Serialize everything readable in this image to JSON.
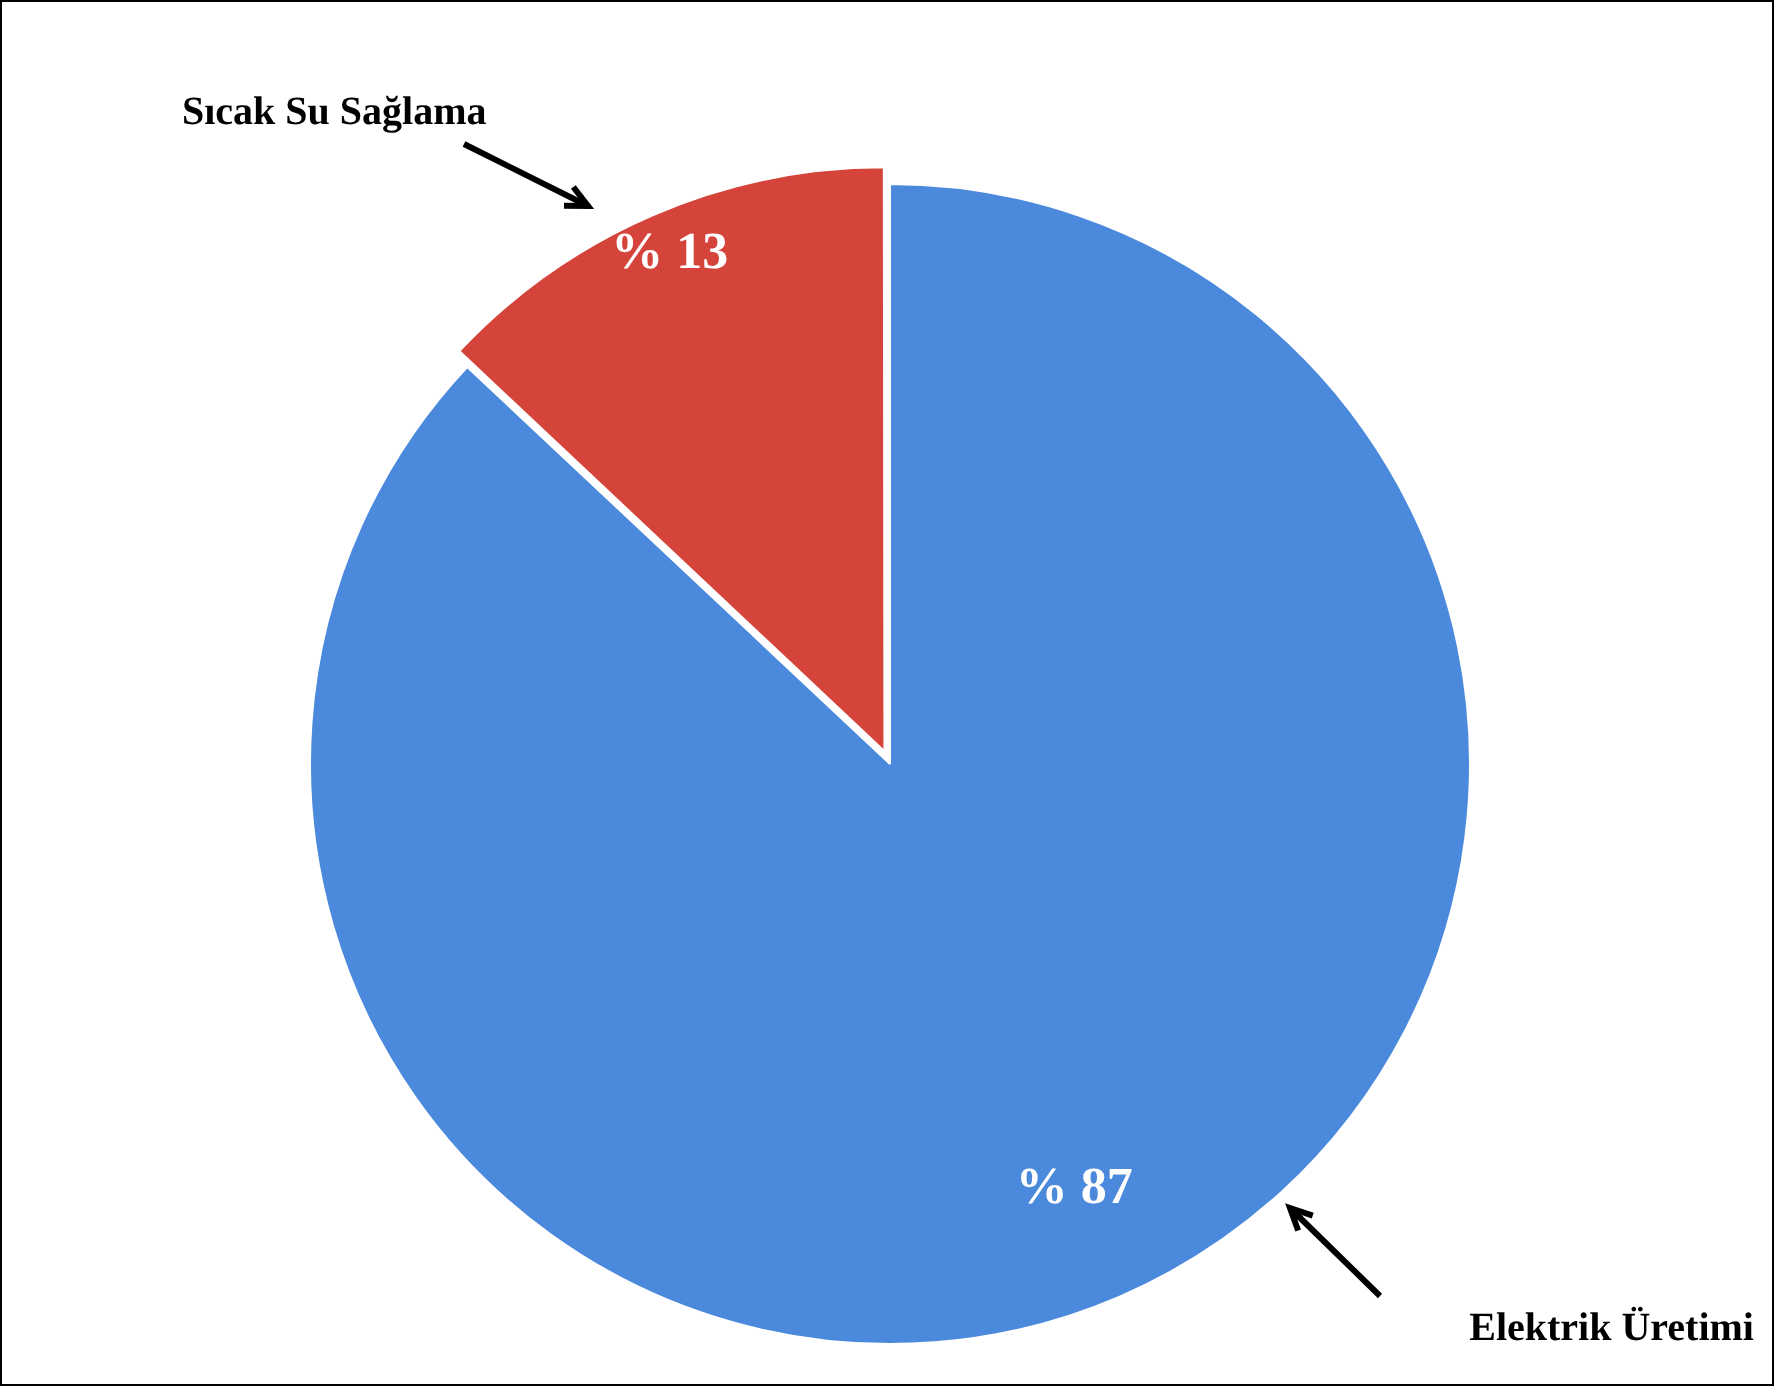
{
  "chart_data": {
    "type": "pie",
    "categories": [
      "Elektrik Üretimi",
      "Sıcak Su Sağlama"
    ],
    "values": [
      87,
      13
    ],
    "colors": [
      "#4a89dc",
      "#d5443a"
    ],
    "value_labels": [
      "% 87",
      "% 13"
    ],
    "legend": false
  }
}
